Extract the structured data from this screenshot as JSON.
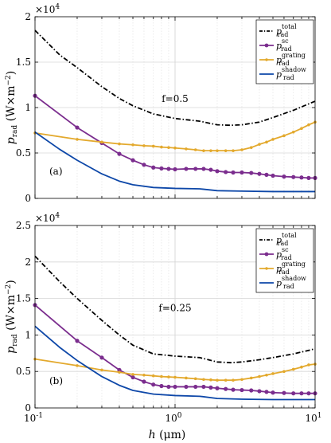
{
  "chart_data": [
    {
      "type": "line",
      "panel_label": "(a)",
      "annotation": "f=0.5",
      "exponent_label": "×10",
      "exponent_power": "4",
      "xscale": "log",
      "xlim": [
        0.1,
        10
      ],
      "ylim": [
        0,
        20000
      ],
      "yticks": [
        0,
        5000,
        10000,
        15000,
        20000
      ],
      "ytick_labels": [
        "0",
        "0.5",
        "1",
        "1.5",
        "2"
      ],
      "xticks": [
        0.1,
        1,
        10
      ],
      "xtick_labels": [
        "10",
        "10",
        "10"
      ],
      "xtick_powers": [
        "-1",
        "0",
        "1"
      ],
      "show_x_ticklabels": false,
      "ylabel_main": "p",
      "ylabel_sub": "rad",
      "ylabel_unit": "(W×m",
      "ylabel_unit_power": "−2",
      "ylabel_unit_close": ")",
      "xlabel": "",
      "grid": true,
      "legend_position": "top-right",
      "series": [
        {
          "name": "p",
          "sup": "total",
          "sub": "rad",
          "color": "#000000",
          "style": "dashdot",
          "marker": false,
          "x": [
            0.1,
            0.15,
            0.2,
            0.3,
            0.4,
            0.5,
            0.7,
            1.0,
            1.5,
            2.0,
            2.5,
            3.0,
            4.0,
            5.0,
            7.0,
            10.0
          ],
          "y": [
            18500,
            15800,
            14400,
            12300,
            11000,
            10200,
            9300,
            8800,
            8500,
            8100,
            8050,
            8100,
            8400,
            8900,
            9700,
            10700
          ]
        },
        {
          "name": "p",
          "sup": "sc",
          "sub": "rad",
          "color": "#7b2d8e",
          "style": "solid",
          "marker": true,
          "x": [
            0.1,
            0.2,
            0.3,
            0.4,
            0.5,
            0.6,
            0.7,
            0.8,
            0.9,
            1.0,
            1.2,
            1.4,
            1.6,
            1.8,
            2.0,
            2.3,
            2.6,
            3.0,
            3.5,
            4.0,
            4.5,
            5.0,
            6.0,
            7.0,
            8.0,
            9.0,
            10.0
          ],
          "y": [
            11300,
            7800,
            6100,
            4900,
            4200,
            3700,
            3400,
            3300,
            3250,
            3200,
            3250,
            3250,
            3250,
            3150,
            3000,
            2900,
            2850,
            2850,
            2800,
            2700,
            2600,
            2500,
            2400,
            2350,
            2300,
            2250,
            2250
          ]
        },
        {
          "name": "p",
          "sup": "grating",
          "sub": "rad",
          "color": "#e3a92d",
          "style": "solid",
          "marker": true,
          "x": [
            0.1,
            0.2,
            0.3,
            0.4,
            0.5,
            0.6,
            0.7,
            0.8,
            0.9,
            1.0,
            1.2,
            1.4,
            1.6,
            1.8,
            2.0,
            2.3,
            2.6,
            3.0,
            3.5,
            4.0,
            4.5,
            5.0,
            6.0,
            7.0,
            8.0,
            9.0,
            10.0
          ],
          "y": [
            7200,
            6500,
            6200,
            6000,
            5900,
            5800,
            5750,
            5650,
            5600,
            5550,
            5450,
            5350,
            5250,
            5250,
            5250,
            5250,
            5250,
            5350,
            5600,
            5950,
            6200,
            6500,
            6900,
            7300,
            7700,
            8100,
            8400
          ]
        },
        {
          "name": "p",
          "sup": "shadow",
          "sub": "rad",
          "color": "#0d47a8",
          "style": "solid",
          "marker": false,
          "x": [
            0.1,
            0.15,
            0.2,
            0.3,
            0.4,
            0.5,
            0.7,
            1.0,
            1.5,
            2.0,
            3.0,
            5.0,
            10.0
          ],
          "y": [
            7300,
            5400,
            4200,
            2700,
            1900,
            1500,
            1200,
            1100,
            1050,
            850,
            800,
            750,
            750
          ]
        }
      ]
    },
    {
      "type": "line",
      "panel_label": "(b)",
      "annotation": "f=0.25",
      "exponent_label": "×10",
      "exponent_power": "4",
      "xscale": "log",
      "xlim": [
        0.1,
        10
      ],
      "ylim": [
        0,
        25000
      ],
      "yticks": [
        0,
        5000,
        10000,
        15000,
        20000,
        25000
      ],
      "ytick_labels": [
        "0",
        "0.5",
        "1",
        "1.5",
        "2",
        "2.5"
      ],
      "xticks": [
        0.1,
        1,
        10
      ],
      "xtick_labels": [
        "10",
        "10",
        "10"
      ],
      "xtick_powers": [
        "-1",
        "0",
        "1"
      ],
      "show_x_ticklabels": true,
      "ylabel_main": "p",
      "ylabel_sub": "rad",
      "ylabel_unit": "(W×m",
      "ylabel_unit_power": "−2",
      "ylabel_unit_close": ")",
      "xlabel_main": "h",
      "xlabel_unit": "(μm)",
      "grid": true,
      "legend_position": "top-right",
      "series": [
        {
          "name": "p",
          "sup": "total",
          "sub": "rad",
          "color": "#000000",
          "style": "dashdot",
          "marker": false,
          "x": [
            0.1,
            0.15,
            0.2,
            0.3,
            0.4,
            0.5,
            0.7,
            1.0,
            1.5,
            2.0,
            2.5,
            3.0,
            4.0,
            5.0,
            7.0,
            10.0
          ],
          "y": [
            20800,
            17300,
            15000,
            12000,
            10000,
            8600,
            7400,
            7100,
            6900,
            6300,
            6200,
            6300,
            6600,
            6900,
            7400,
            8100
          ]
        },
        {
          "name": "p",
          "sup": "sc",
          "sub": "rad",
          "color": "#7b2d8e",
          "style": "solid",
          "marker": true,
          "x": [
            0.1,
            0.2,
            0.3,
            0.4,
            0.5,
            0.6,
            0.7,
            0.8,
            0.9,
            1.0,
            1.2,
            1.4,
            1.6,
            1.8,
            2.0,
            2.3,
            2.6,
            3.0,
            3.5,
            4.0,
            4.5,
            5.0,
            6.0,
            7.0,
            8.0,
            9.0,
            10.0
          ],
          "y": [
            14100,
            9200,
            6900,
            5200,
            4200,
            3600,
            3200,
            3000,
            2900,
            2900,
            2900,
            2900,
            2900,
            2800,
            2700,
            2600,
            2500,
            2450,
            2400,
            2300,
            2200,
            2100,
            2050,
            2000,
            2000,
            2000,
            2000
          ]
        },
        {
          "name": "p",
          "sup": "grating",
          "sub": "rad",
          "color": "#e3a92d",
          "style": "solid",
          "marker": true,
          "x": [
            0.1,
            0.2,
            0.3,
            0.4,
            0.5,
            0.6,
            0.7,
            0.8,
            0.9,
            1.0,
            1.2,
            1.4,
            1.6,
            1.8,
            2.0,
            2.3,
            2.6,
            3.0,
            3.5,
            4.0,
            4.5,
            5.0,
            6.0,
            7.0,
            8.0,
            9.0,
            10.0
          ],
          "y": [
            6700,
            5800,
            5200,
            4900,
            4600,
            4500,
            4400,
            4300,
            4250,
            4200,
            4100,
            4000,
            3900,
            3850,
            3800,
            3800,
            3800,
            3900,
            4100,
            4300,
            4500,
            4700,
            5000,
            5300,
            5600,
            5900,
            6000
          ]
        },
        {
          "name": "p",
          "sup": "shadow",
          "sub": "rad",
          "color": "#0d47a8",
          "style": "solid",
          "marker": false,
          "x": [
            0.1,
            0.15,
            0.2,
            0.3,
            0.4,
            0.5,
            0.7,
            1.0,
            1.5,
            2.0,
            3.0,
            5.0,
            10.0
          ],
          "y": [
            11200,
            8300,
            6500,
            4300,
            3100,
            2400,
            1900,
            1700,
            1600,
            1300,
            1200,
            1150,
            1150
          ]
        }
      ]
    }
  ]
}
